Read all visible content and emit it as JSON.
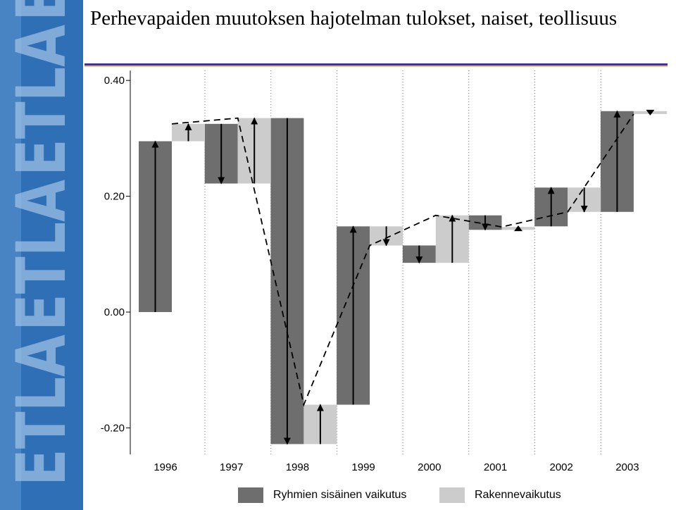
{
  "header": {
    "title": "Perhevapaiden muutoksen hajotelman tulokset, naiset, teollisuus"
  },
  "side_logo": {
    "text": "ETLA",
    "colors": {
      "band": "#2f6fb5",
      "band_light": "#5a93cf",
      "letters": "#9cc0e6"
    }
  },
  "legend": {
    "items": [
      {
        "label": "Ryhmien sisäinen vaikutus",
        "color": "#6e6e6e"
      },
      {
        "label": "Rakennevaikutus",
        "color": "#cccccc"
      }
    ]
  },
  "colors": {
    "within": "#6e6e6e",
    "structure": "#cccccc",
    "axis": "#000000",
    "gridline": "#7a7a7a"
  },
  "chart_data": {
    "type": "bar",
    "subtype": "waterfall decomposition with arrows and dashed total-change line",
    "categories": [
      "1996",
      "1997",
      "1998",
      "1999",
      "2000",
      "2001",
      "2002",
      "2003"
    ],
    "ylim": [
      -0.25,
      0.4
    ],
    "y_ticks": [
      {
        "value": 0.4,
        "label": "0.40"
      },
      {
        "value": 0.2,
        "label": "0.20"
      },
      {
        "value": 0.0,
        "label": "0.00"
      },
      {
        "value": -0.2,
        "label": "-0.20"
      }
    ],
    "grid": "vertical dotted separators between years",
    "legend_position": "bottom",
    "series": [
      {
        "name": "Ryhmien sisäinen vaikutus",
        "segments": [
          {
            "year": "1996",
            "from": 0.0,
            "to": 0.295
          },
          {
            "year": "1997",
            "from": 0.325,
            "to": 0.222
          },
          {
            "year": "1998",
            "from": 0.335,
            "to": -0.228
          },
          {
            "year": "1999",
            "from": -0.16,
            "to": 0.148
          },
          {
            "year": "2000",
            "from": 0.115,
            "to": 0.085
          },
          {
            "year": "2001",
            "from": 0.167,
            "to": 0.142
          },
          {
            "year": "2002",
            "from": 0.148,
            "to": 0.215
          },
          {
            "year": "2003",
            "from": 0.173,
            "to": 0.347
          }
        ]
      },
      {
        "name": "Rakennevaikutus",
        "segments": [
          {
            "year": "1996",
            "from": 0.295,
            "to": 0.325
          },
          {
            "year": "1997",
            "from": 0.222,
            "to": 0.335
          },
          {
            "year": "1998",
            "from": -0.228,
            "to": -0.16
          },
          {
            "year": "1999",
            "from": 0.148,
            "to": 0.115
          },
          {
            "year": "2000",
            "from": 0.085,
            "to": 0.167
          },
          {
            "year": "2001",
            "from": 0.142,
            "to": 0.147
          },
          {
            "year": "2002",
            "from": 0.215,
            "to": 0.173
          },
          {
            "year": "2003",
            "from": 0.347,
            "to": 0.342
          }
        ]
      }
    ],
    "total_change_line": [
      {
        "year": "1996",
        "value": 0.325
      },
      {
        "year": "1997",
        "value": 0.335
      },
      {
        "year": "1998",
        "value": -0.16
      },
      {
        "year": "1999",
        "value": 0.115
      },
      {
        "year": "2000",
        "value": 0.167
      },
      {
        "year": "2001",
        "value": 0.147
      },
      {
        "year": "2002",
        "value": 0.173
      },
      {
        "year": "2003",
        "value": 0.342
      }
    ]
  }
}
